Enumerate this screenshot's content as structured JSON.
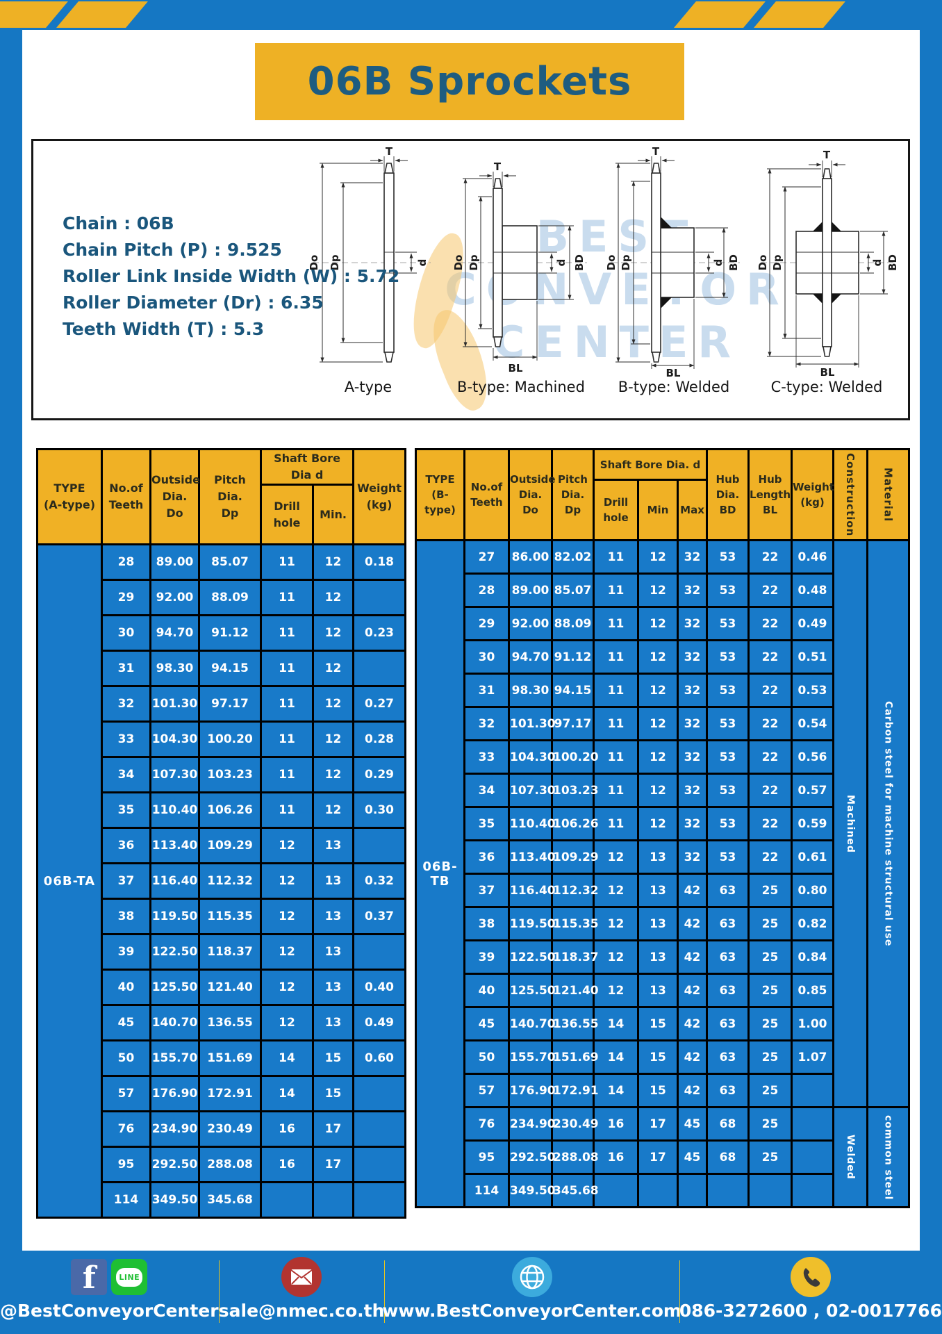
{
  "page": {
    "title": "06B Sprockets"
  },
  "specs": {
    "lines": [
      "Chain : 06B",
      "Chain Pitch (P) : 9.525",
      "Roller Link Inside Width (W) : 5.72",
      "Roller Diameter (Dr) : 6.35",
      "Teeth Width (T) : 5.3"
    ]
  },
  "watermark": {
    "lines": [
      "BEST",
      "CONVEYOR",
      "CENTER"
    ]
  },
  "diagrams": {
    "items": [
      {
        "label": "A-type",
        "dims": {
          "t": "T",
          "do": "Do",
          "dp": "Dp",
          "d": "d"
        }
      },
      {
        "label": "B-type: Machined",
        "dims": {
          "t": "T",
          "do": "Do",
          "dp": "Dp",
          "d": "d",
          "bd": "BD",
          "bl": "BL"
        }
      },
      {
        "label": "B-type: Welded",
        "dims": {
          "t": "T",
          "do": "Do",
          "dp": "Dp",
          "d": "d",
          "bd": "BD",
          "bl": "BL"
        }
      },
      {
        "label": "C-type: Welded",
        "dims": {
          "t": "T",
          "do": "Do",
          "dp": "Dp",
          "d": "d",
          "bd": "BD",
          "bl": "BL"
        }
      }
    ]
  },
  "table_a": {
    "title_cell": "TYPE\n(A-type)",
    "type_label": "06B-TA",
    "headers": {
      "teeth": "No.of\nTeeth",
      "outside": "Outside\nDia.\nDo",
      "pitch": "Pitch Dia.\nDp",
      "shaft": "Shaft Bore Dia d",
      "drill": "Drill hole",
      "min": "Min.",
      "weight": "Weight\n(kg)"
    },
    "rows": [
      [
        "28",
        "89.00",
        "85.07",
        "11",
        "12",
        "0.18"
      ],
      [
        "29",
        "92.00",
        "88.09",
        "11",
        "12",
        ""
      ],
      [
        "30",
        "94.70",
        "91.12",
        "11",
        "12",
        "0.23"
      ],
      [
        "31",
        "98.30",
        "94.15",
        "11",
        "12",
        ""
      ],
      [
        "32",
        "101.30",
        "97.17",
        "11",
        "12",
        "0.27"
      ],
      [
        "33",
        "104.30",
        "100.20",
        "11",
        "12",
        "0.28"
      ],
      [
        "34",
        "107.30",
        "103.23",
        "11",
        "12",
        "0.29"
      ],
      [
        "35",
        "110.40",
        "106.26",
        "11",
        "12",
        "0.30"
      ],
      [
        "36",
        "113.40",
        "109.29",
        "12",
        "13",
        ""
      ],
      [
        "37",
        "116.40",
        "112.32",
        "12",
        "13",
        "0.32"
      ],
      [
        "38",
        "119.50",
        "115.35",
        "12",
        "13",
        "0.37"
      ],
      [
        "39",
        "122.50",
        "118.37",
        "12",
        "13",
        ""
      ],
      [
        "40",
        "125.50",
        "121.40",
        "12",
        "13",
        "0.40"
      ],
      [
        "45",
        "140.70",
        "136.55",
        "12",
        "13",
        "0.49"
      ],
      [
        "50",
        "155.70",
        "151.69",
        "14",
        "15",
        "0.60"
      ],
      [
        "57",
        "176.90",
        "172.91",
        "14",
        "15",
        ""
      ],
      [
        "76",
        "234.90",
        "230.49",
        "16",
        "17",
        ""
      ],
      [
        "95",
        "292.50",
        "288.08",
        "16",
        "17",
        ""
      ],
      [
        "114",
        "349.50",
        "345.68",
        "",
        "",
        ""
      ]
    ]
  },
  "table_b": {
    "title_cell": "TYPE\n(B-type)",
    "type_label": "06B-TB",
    "headers": {
      "teeth": "No.of\nTeeth",
      "outside": "Outside\nDia.\nDo",
      "pitch": "Pitch\nDia.\nDp",
      "shaft": "Shaft Bore Dia. d",
      "drill": "Drill hole",
      "min": "Min",
      "max": "Max",
      "hub_dia": "Hub\nDia.\nBD",
      "hub_len": "Hub\nLength\nBL",
      "weight": "Weight\n(kg)",
      "construction": "Construction",
      "material": "Material"
    },
    "rows": [
      [
        "27",
        "86.00",
        "82.02",
        "11",
        "12",
        "32",
        "53",
        "22",
        "0.46"
      ],
      [
        "28",
        "89.00",
        "85.07",
        "11",
        "12",
        "32",
        "53",
        "22",
        "0.48"
      ],
      [
        "29",
        "92.00",
        "88.09",
        "11",
        "12",
        "32",
        "53",
        "22",
        "0.49"
      ],
      [
        "30",
        "94.70",
        "91.12",
        "11",
        "12",
        "32",
        "53",
        "22",
        "0.51"
      ],
      [
        "31",
        "98.30",
        "94.15",
        "11",
        "12",
        "32",
        "53",
        "22",
        "0.53"
      ],
      [
        "32",
        "101.30",
        "97.17",
        "11",
        "12",
        "32",
        "53",
        "22",
        "0.54"
      ],
      [
        "33",
        "104.30",
        "100.20",
        "11",
        "12",
        "32",
        "53",
        "22",
        "0.56"
      ],
      [
        "34",
        "107.30",
        "103.23",
        "11",
        "12",
        "32",
        "53",
        "22",
        "0.57"
      ],
      [
        "35",
        "110.40",
        "106.26",
        "11",
        "12",
        "32",
        "53",
        "22",
        "0.59"
      ],
      [
        "36",
        "113.40",
        "109.29",
        "12",
        "13",
        "32",
        "53",
        "22",
        "0.61"
      ],
      [
        "37",
        "116.40",
        "112.32",
        "12",
        "13",
        "42",
        "63",
        "25",
        "0.80"
      ],
      [
        "38",
        "119.50",
        "115.35",
        "12",
        "13",
        "42",
        "63",
        "25",
        "0.82"
      ],
      [
        "39",
        "122.50",
        "118.37",
        "12",
        "13",
        "42",
        "63",
        "25",
        "0.84"
      ],
      [
        "40",
        "125.50",
        "121.40",
        "12",
        "13",
        "42",
        "63",
        "25",
        "0.85"
      ],
      [
        "45",
        "140.70",
        "136.55",
        "14",
        "15",
        "42",
        "63",
        "25",
        "1.00"
      ],
      [
        "50",
        "155.70",
        "151.69",
        "14",
        "15",
        "42",
        "63",
        "25",
        "1.07"
      ],
      [
        "57",
        "176.90",
        "172.91",
        "14",
        "15",
        "42",
        "63",
        "25",
        ""
      ],
      [
        "76",
        "234.90",
        "230.49",
        "16",
        "17",
        "45",
        "68",
        "25",
        ""
      ],
      [
        "95",
        "292.50",
        "288.08",
        "16",
        "17",
        "45",
        "68",
        "25",
        ""
      ],
      [
        "114",
        "349.50",
        "345.68",
        "",
        "",
        "",
        "",
        "",
        ""
      ]
    ],
    "construction_spans": [
      {
        "label": "Machined",
        "rows": 17
      },
      {
        "label": "Welded",
        "rows": 3
      }
    ],
    "material_spans": [
      {
        "label": "Carbon steel for machine structural use",
        "rows": 17
      },
      {
        "label": "common steel",
        "rows": 3
      }
    ]
  },
  "footer": {
    "facebook_glyph": "f",
    "line_icon_text": "LINE",
    "items": [
      {
        "icons": [
          "facebook-icon",
          "line-icon"
        ],
        "label": "@BestConveyorCenter"
      },
      {
        "icons": [
          "email-icon"
        ],
        "label": "sale@nmec.co.th"
      },
      {
        "icons": [
          "globe-icon"
        ],
        "label": "www.BestConveyorCenter.com"
      },
      {
        "icons": [
          "phone-icon"
        ],
        "label": "086-3272600 , 02-0017766"
      }
    ]
  },
  "colors": {
    "frame_blue": "#1577c3",
    "accent_yellow": "#eeb125",
    "cell_blue": "#187ac9",
    "title_text_blue": "#1e5c80",
    "divider_yellow": "#e8c41f"
  }
}
